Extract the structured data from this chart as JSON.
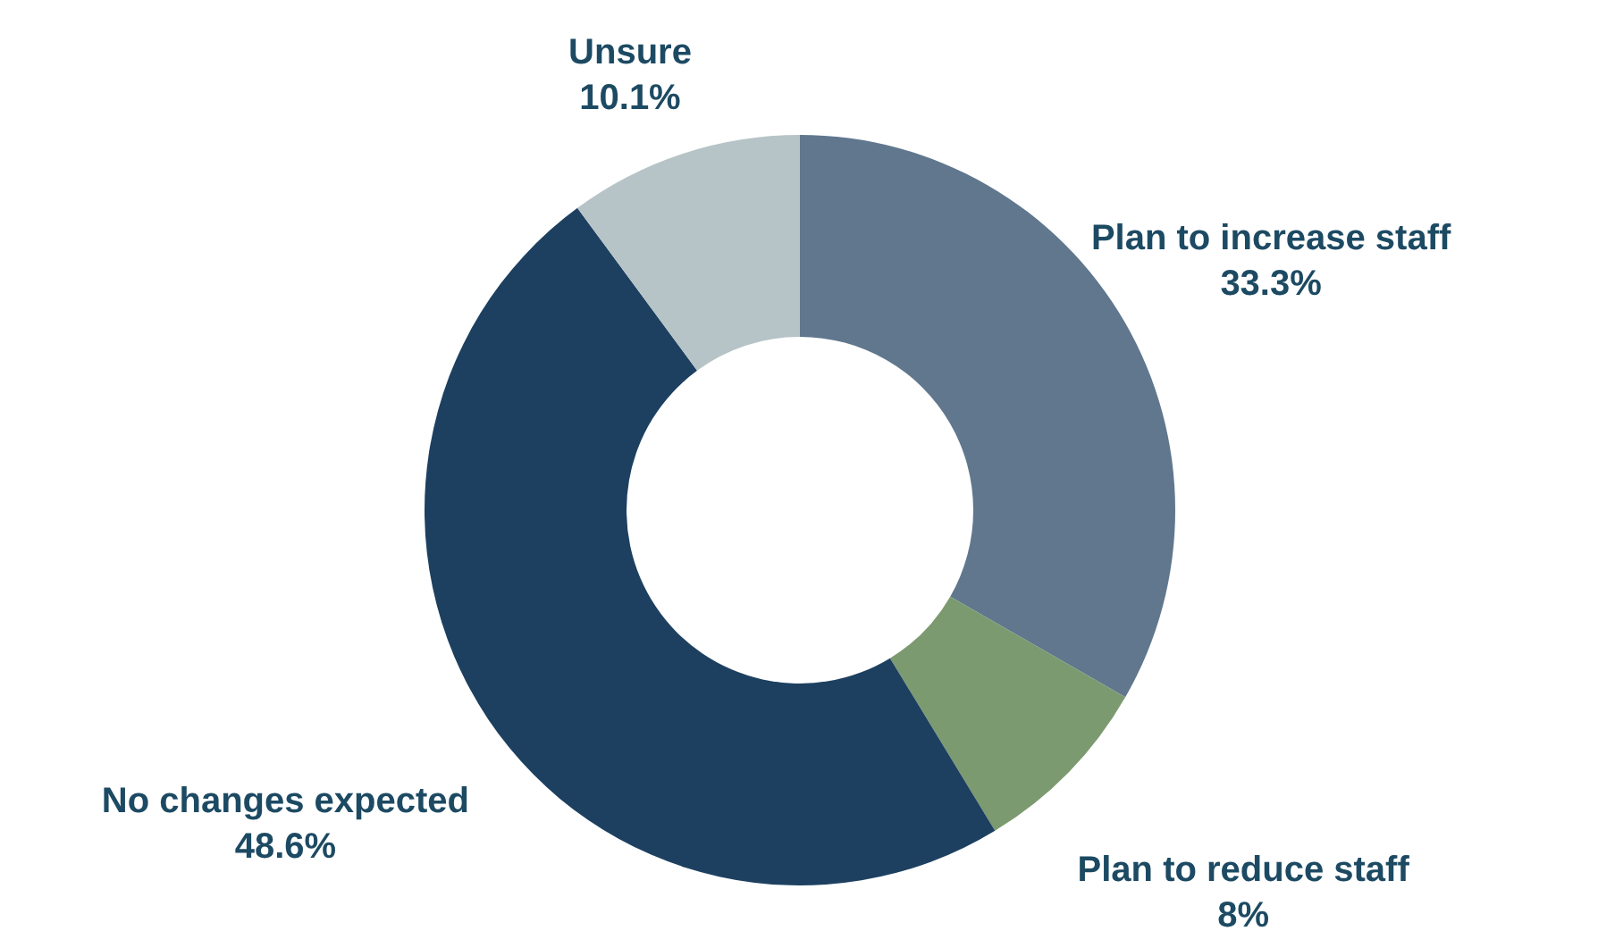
{
  "chart_data": {
    "type": "donut",
    "categories": [
      "Plan to increase staff",
      "Plan to reduce staff",
      "No changes expected",
      "Unsure"
    ],
    "values": [
      33.3,
      8,
      48.6,
      10.1
    ],
    "value_labels": [
      "33.3%",
      "8%",
      "48.6%",
      "10.1%"
    ],
    "colors": [
      "#60778e",
      "#7c9a70",
      "#1d4060",
      "#b7c4c7"
    ],
    "legend": false
  }
}
